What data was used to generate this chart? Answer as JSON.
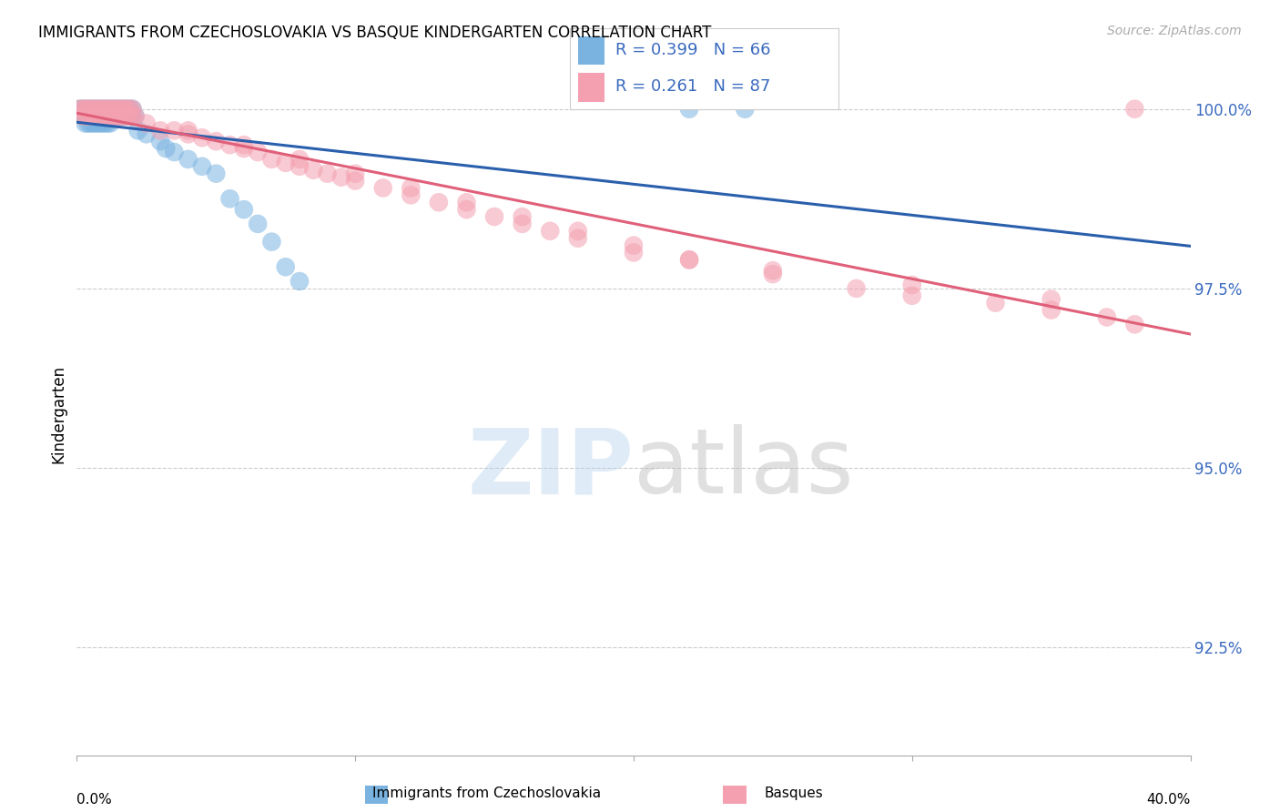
{
  "title": "IMMIGRANTS FROM CZECHOSLOVAKIA VS BASQUE KINDERGARTEN CORRELATION CHART",
  "source": "Source: ZipAtlas.com",
  "ylabel": "Kindergarten",
  "ylabel_right_ticks": [
    "100.0%",
    "97.5%",
    "95.0%",
    "92.5%"
  ],
  "ylabel_right_vals": [
    1.0,
    0.975,
    0.95,
    0.925
  ],
  "xmin": 0.0,
  "xmax": 0.4,
  "ymin": 0.91,
  "ymax": 1.005,
  "blue_color": "#7ab3e0",
  "pink_color": "#f4a0b0",
  "blue_line_color": "#2a5fac",
  "pink_line_color": "#e0607a",
  "legend_text_color": "#3a6abf",
  "R_blue": 0.399,
  "N_blue": 66,
  "R_pink": 0.261,
  "N_pink": 87,
  "blue_scatter_x": [
    0.001,
    0.002,
    0.003,
    0.004,
    0.005,
    0.006,
    0.007,
    0.008,
    0.009,
    0.01,
    0.011,
    0.012,
    0.013,
    0.014,
    0.015,
    0.016,
    0.017,
    0.018,
    0.019,
    0.02,
    0.002,
    0.003,
    0.004,
    0.005,
    0.006,
    0.007,
    0.008,
    0.009,
    0.01,
    0.011,
    0.012,
    0.013,
    0.014,
    0.015,
    0.016,
    0.017,
    0.018,
    0.019,
    0.02,
    0.021,
    0.003,
    0.004,
    0.005,
    0.006,
    0.007,
    0.008,
    0.009,
    0.01,
    0.011,
    0.012,
    0.022,
    0.025,
    0.03,
    0.032,
    0.035,
    0.04,
    0.045,
    0.05,
    0.055,
    0.06,
    0.065,
    0.07,
    0.075,
    0.08,
    0.22,
    0.24
  ],
  "blue_scatter_y": [
    1.0,
    1.0,
    1.0,
    1.0,
    1.0,
    1.0,
    1.0,
    1.0,
    1.0,
    1.0,
    1.0,
    1.0,
    1.0,
    1.0,
    1.0,
    1.0,
    1.0,
    1.0,
    1.0,
    1.0,
    0.999,
    0.999,
    0.999,
    0.999,
    0.999,
    0.999,
    0.999,
    0.999,
    0.999,
    0.999,
    0.999,
    0.999,
    0.999,
    0.999,
    0.999,
    0.999,
    0.999,
    0.999,
    0.999,
    0.999,
    0.998,
    0.998,
    0.998,
    0.998,
    0.998,
    0.998,
    0.998,
    0.998,
    0.998,
    0.998,
    0.997,
    0.9965,
    0.9955,
    0.9945,
    0.994,
    0.993,
    0.992,
    0.991,
    0.9875,
    0.986,
    0.984,
    0.9815,
    0.978,
    0.976,
    1.0,
    1.0
  ],
  "pink_scatter_x": [
    0.001,
    0.002,
    0.003,
    0.004,
    0.005,
    0.006,
    0.007,
    0.008,
    0.009,
    0.01,
    0.011,
    0.012,
    0.013,
    0.014,
    0.015,
    0.016,
    0.017,
    0.018,
    0.019,
    0.02,
    0.002,
    0.003,
    0.004,
    0.005,
    0.006,
    0.007,
    0.008,
    0.009,
    0.01,
    0.011,
    0.012,
    0.013,
    0.014,
    0.015,
    0.016,
    0.017,
    0.018,
    0.019,
    0.02,
    0.021,
    0.025,
    0.03,
    0.035,
    0.04,
    0.045,
    0.05,
    0.055,
    0.06,
    0.065,
    0.07,
    0.075,
    0.08,
    0.085,
    0.09,
    0.095,
    0.1,
    0.11,
    0.12,
    0.13,
    0.14,
    0.15,
    0.16,
    0.17,
    0.18,
    0.2,
    0.22,
    0.25,
    0.28,
    0.3,
    0.33,
    0.35,
    0.37,
    0.38,
    0.35,
    0.3,
    0.25,
    0.22,
    0.2,
    0.18,
    0.16,
    0.14,
    0.12,
    0.1,
    0.08,
    0.06,
    0.04,
    0.38
  ],
  "pink_scatter_y": [
    1.0,
    1.0,
    1.0,
    1.0,
    1.0,
    1.0,
    1.0,
    1.0,
    1.0,
    1.0,
    1.0,
    1.0,
    1.0,
    1.0,
    1.0,
    1.0,
    1.0,
    1.0,
    1.0,
    1.0,
    0.999,
    0.999,
    0.999,
    0.999,
    0.999,
    0.999,
    0.999,
    0.999,
    0.999,
    0.999,
    0.999,
    0.999,
    0.999,
    0.999,
    0.999,
    0.999,
    0.999,
    0.999,
    0.999,
    0.999,
    0.998,
    0.997,
    0.997,
    0.9965,
    0.996,
    0.9955,
    0.995,
    0.9945,
    0.994,
    0.993,
    0.9925,
    0.992,
    0.9915,
    0.991,
    0.9905,
    0.99,
    0.989,
    0.988,
    0.987,
    0.986,
    0.985,
    0.984,
    0.983,
    0.982,
    0.98,
    0.979,
    0.977,
    0.975,
    0.974,
    0.973,
    0.972,
    0.971,
    0.97,
    0.9735,
    0.9755,
    0.9775,
    0.979,
    0.981,
    0.983,
    0.985,
    0.987,
    0.989,
    0.991,
    0.993,
    0.995,
    0.997,
    1.0
  ]
}
